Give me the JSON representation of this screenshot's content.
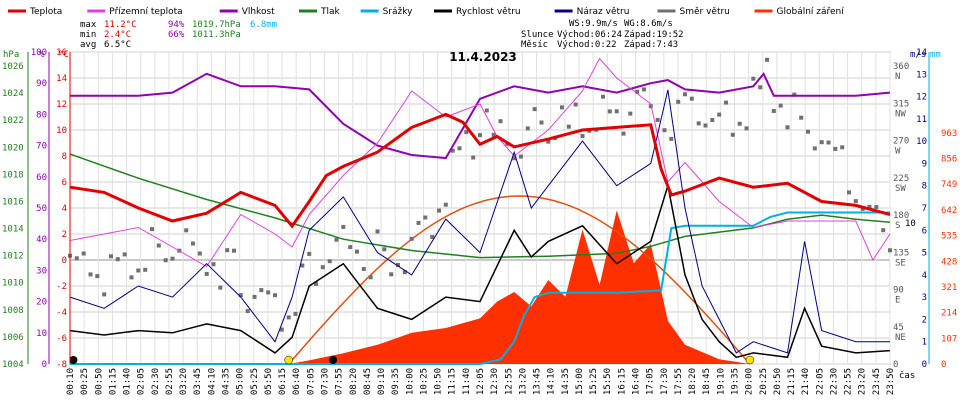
{
  "chart_data": {
    "type": "line",
    "title": "11.4.2023",
    "legend": [
      {
        "name": "Teplota",
        "color": "#e00000"
      },
      {
        "name": "Přízemní teplota",
        "color": "#e040e0"
      },
      {
        "name": "Vlhkost",
        "color": "#9000b0"
      },
      {
        "name": "Tlak",
        "color": "#208020"
      },
      {
        "name": "Srážky",
        "color": "#00b0e0"
      },
      {
        "name": "Rychlost větru",
        "color": "#000000"
      },
      {
        "name": "Náraz větru",
        "color": "#000080"
      },
      {
        "name": "Směr větru",
        "color": "#707070"
      },
      {
        "name": "Globální záření",
        "color": "#ff3000"
      }
    ],
    "stats": {
      "labels": [
        "max",
        "min",
        "avg"
      ],
      "temp": [
        "11.2°C",
        "2.4°C",
        "6.5°C"
      ],
      "hum": [
        "94%",
        "66%",
        ""
      ],
      "press": [
        "1019.7hPa",
        "1011.3hPa",
        ""
      ],
      "rain": [
        "6.8mm",
        "",
        ""
      ]
    },
    "wind_info": {
      "ws": "WS:9.9m/s",
      "wg": "WG:8.6m/s",
      "sun_label": "Slunce",
      "sunrise": "Východ:06:24",
      "sunset": "Západ:19:52",
      "moon_label": "Měsíc",
      "moonrise": "Východ:0:22",
      "moonset": "Západ:7:43"
    },
    "axes": {
      "hpa_label": "hPa",
      "pct_label": "%",
      "c_label": "°C",
      "ms_label": "m/s",
      "mm_label": "mm",
      "time_label": "čas",
      "hpa_ticks": [
        "1026",
        "1024",
        "1022",
        "1020",
        "1018",
        "1016",
        "1014",
        "1012",
        "1010",
        "1008",
        "1006",
        "1004"
      ],
      "pct_ticks": [
        "100",
        "90",
        "80",
        "70",
        "60",
        "50",
        "40",
        "30",
        "20",
        "10",
        "0"
      ],
      "c_ticks": [
        "16",
        "14",
        "12",
        "10",
        "8",
        "6",
        "4",
        "2",
        "0",
        "-2",
        "-4",
        "-6",
        "-8"
      ],
      "dir_ticks": [
        "360",
        "315",
        "270",
        "225",
        "180",
        "135",
        "90",
        "45",
        "0"
      ],
      "dir_names": [
        "N",
        "NW",
        "W",
        "SW",
        "S",
        "SE",
        "E",
        "NE",
        ""
      ],
      "ms_ticks": [
        "14",
        "13",
        "12",
        "11",
        "10",
        "9",
        "8",
        "7",
        "6",
        "5",
        "4",
        "3",
        "2",
        "1",
        "0"
      ],
      "rad_ticks": [
        "963",
        "856",
        "749",
        "642",
        "535",
        "428",
        "321",
        "214",
        "107",
        "0"
      ],
      "rad_max_mark": "10",
      "time_ticks": [
        "00:10",
        "00:25",
        "00:50",
        "01:15",
        "01:40",
        "02:05",
        "02:30",
        "02:55",
        "03:20",
        "03:45",
        "04:10",
        "04:35",
        "05:00",
        "05:25",
        "05:50",
        "06:15",
        "06:40",
        "07:05",
        "07:30",
        "07:55",
        "08:20",
        "08:45",
        "09:10",
        "09:35",
        "10:00",
        "10:25",
        "10:50",
        "11:15",
        "11:40",
        "12:05",
        "12:30",
        "12:55",
        "13:20",
        "13:45",
        "14:10",
        "14:35",
        "15:00",
        "15:25",
        "15:50",
        "16:15",
        "16:40",
        "17:05",
        "17:30",
        "17:55",
        "18:20",
        "18:45",
        "19:10",
        "19:35",
        "20:00",
        "20:25",
        "20:50",
        "21:15",
        "21:40",
        "22:05",
        "22:30",
        "22:55",
        "23:20",
        "23:45",
        "23:50"
      ]
    },
    "ranges": {
      "temp_c": [
        -8,
        16
      ],
      "humidity_pct": [
        0,
        100
      ],
      "pressure_hpa": [
        1004,
        1026
      ],
      "wind_ms": [
        0,
        14
      ],
      "radiation_wm2": [
        0,
        963
      ]
    },
    "series": [
      {
        "name": "Teplota",
        "unit": "°C",
        "x_hours": [
          0,
          1,
          2,
          3,
          4,
          5,
          6,
          6.5,
          7,
          7.5,
          8,
          9,
          10,
          11,
          11.5,
          12,
          12.5,
          13,
          14,
          15,
          16,
          17,
          17.3,
          17.6,
          18,
          19,
          20,
          21,
          22,
          23,
          24
        ],
        "values": [
          5.6,
          5.2,
          4.0,
          3.0,
          3.6,
          5.2,
          4.2,
          2.6,
          4.5,
          6.5,
          7.2,
          8.3,
          10.2,
          11.2,
          10.6,
          8.9,
          9.5,
          8.7,
          9.3,
          10.0,
          10.2,
          10.4,
          7.0,
          5.0,
          5.3,
          6.3,
          5.6,
          5.9,
          4.5,
          4.2,
          3.5
        ]
      },
      {
        "name": "Přízemní teplota",
        "unit": "°C",
        "x_hours": [
          0,
          1,
          2,
          3,
          4,
          5,
          6,
          6.5,
          7,
          8,
          9,
          10,
          10.5,
          11,
          12,
          12.5,
          13,
          14,
          15,
          15.5,
          16,
          16.5,
          17,
          17.5,
          18,
          19,
          20,
          21,
          22,
          23,
          23.5,
          24
        ],
        "values": [
          1.5,
          2.0,
          2.5,
          1.0,
          -0.5,
          3.5,
          2.0,
          1.0,
          3.5,
          6.5,
          9.0,
          13.0,
          12.0,
          11.0,
          12.0,
          9.5,
          8.0,
          10.0,
          13.0,
          15.5,
          14.0,
          13.0,
          12.0,
          6.0,
          7.5,
          4.5,
          2.5,
          3.0,
          3.0,
          3.0,
          0.0,
          2.0
        ]
      },
      {
        "name": "Vlhkost",
        "unit": "%",
        "x_hours": [
          0,
          2,
          3,
          4,
          5,
          6,
          7,
          8,
          9,
          10,
          11,
          12,
          13,
          14,
          15,
          16,
          17,
          17.5,
          18,
          19,
          20,
          20.3,
          20.6,
          21,
          22,
          23,
          24
        ],
        "values": [
          86,
          86,
          87,
          93,
          89,
          89,
          88,
          77,
          70,
          67,
          66,
          85,
          89,
          87,
          89,
          87,
          90,
          91,
          88,
          87,
          89,
          93,
          86,
          86,
          86,
          86,
          87
        ]
      },
      {
        "name": "Tlak",
        "unit": "hPa",
        "x_hours": [
          0,
          2,
          4,
          6,
          8,
          10,
          12,
          14,
          16,
          17,
          18,
          19,
          20,
          21,
          22,
          23,
          24
        ],
        "values": [
          1018.8,
          1017.1,
          1015.6,
          1014.3,
          1012.8,
          1012.0,
          1011.5,
          1011.6,
          1011.8,
          1012.3,
          1013.0,
          1013.3,
          1013.6,
          1014.2,
          1014.5,
          1014.2,
          1014.0
        ]
      },
      {
        "name": "Srážky",
        "unit": "mm",
        "x_hours": [
          0,
          12,
          12.6,
          13,
          13.3,
          13.6,
          14,
          16,
          17.3,
          17.6,
          18,
          19,
          20,
          20.5,
          21,
          22,
          23,
          24
        ],
        "values": [
          0,
          0,
          0.2,
          1.0,
          2.2,
          3.0,
          3.2,
          3.2,
          3.3,
          6.1,
          6.2,
          6.2,
          6.2,
          6.6,
          6.8,
          6.8,
          6.8,
          6.8
        ]
      },
      {
        "name": "Rychlost větru",
        "unit": "m/s",
        "x_hours": [
          0,
          1,
          2,
          3,
          4,
          5,
          6,
          6.5,
          7,
          8,
          9,
          10,
          11,
          12,
          13,
          13.5,
          14,
          15,
          16,
          17,
          17.5,
          18,
          18.5,
          19,
          19.5,
          20,
          21,
          21.5,
          22,
          23,
          24
        ],
        "values": [
          1.5,
          1.3,
          1.5,
          1.4,
          1.8,
          1.5,
          0.5,
          1.2,
          3.5,
          4.5,
          2.5,
          2.0,
          3.0,
          2.8,
          6.0,
          4.8,
          5.5,
          6.2,
          4.5,
          5.5,
          8.0,
          4.0,
          2.0,
          1.0,
          0.3,
          0.5,
          0.3,
          2.5,
          0.8,
          0.5,
          0.6
        ]
      },
      {
        "name": "Náraz větru",
        "unit": "m/s",
        "x_hours": [
          0,
          1,
          2,
          3,
          4,
          5,
          6,
          6.5,
          7,
          8,
          9,
          10,
          11,
          12,
          13,
          13.5,
          14,
          15,
          16,
          17,
          17.5,
          18,
          18.5,
          19,
          19.5,
          20,
          21,
          21.5,
          22,
          23,
          24
        ],
        "values": [
          3.0,
          2.5,
          3.5,
          3.0,
          4.5,
          3.0,
          1.0,
          3.0,
          6.0,
          7.5,
          5.0,
          4.0,
          6.5,
          5.0,
          9.5,
          7.0,
          8.0,
          10.0,
          8.0,
          9.0,
          12.3,
          7.0,
          3.5,
          2.0,
          0.5,
          1.0,
          0.5,
          5.5,
          1.5,
          1.0,
          1.0
        ]
      },
      {
        "name": "Globální záření",
        "unit": "W/m²",
        "x_hours": [
          6.4,
          7,
          8,
          9,
          10,
          11,
          12,
          12.5,
          13,
          13.5,
          14,
          14.5,
          15,
          15.5,
          16,
          16.5,
          17,
          17.5,
          18,
          19,
          19.9
        ],
        "values": [
          0,
          15,
          45,
          80,
          130,
          150,
          190,
          260,
          300,
          240,
          350,
          280,
          560,
          330,
          640,
          420,
          500,
          180,
          80,
          20,
          0
        ]
      },
      {
        "name": "Směr větru",
        "unit": "°",
        "x_hours": [
          0,
          1,
          2,
          3,
          4,
          5,
          6,
          7,
          8,
          9,
          10,
          11,
          12,
          13,
          14,
          15,
          16,
          17,
          18,
          19,
          20,
          20.5,
          21,
          22,
          23,
          24
        ],
        "values": [
          140,
          120,
          135,
          150,
          140,
          110,
          75,
          120,
          150,
          140,
          145,
          220,
          280,
          270,
          290,
          285,
          300,
          310,
          300,
          295,
          320,
          345,
          300,
          280,
          215,
          160
        ]
      }
    ],
    "annotations": [
      "max",
      "min",
      "avg"
    ]
  }
}
